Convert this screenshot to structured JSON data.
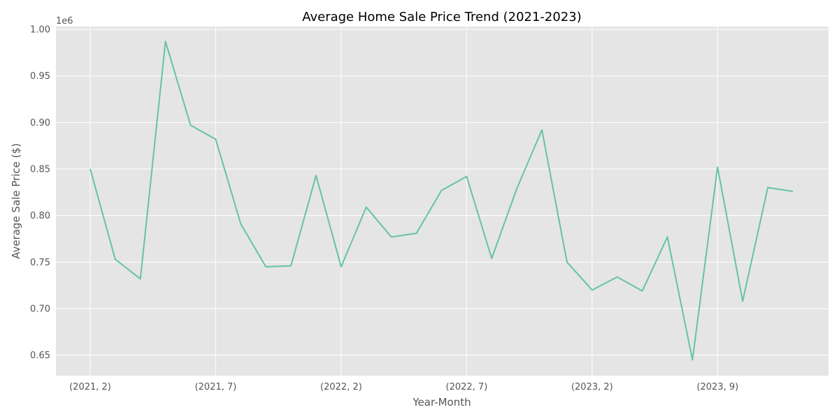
{
  "chart_data": {
    "type": "line",
    "title": "Average Home Sale Price Trend (2021-2023)",
    "xlabel": "Year-Month",
    "ylabel": "Average Sale Price ($)",
    "y_offset_label": "1e6",
    "grid": true,
    "ylim": [
      0.628,
      1.003
    ],
    "y_ticks": [
      0.65,
      0.7,
      0.75,
      0.8,
      0.85,
      0.9,
      0.95,
      1.0
    ],
    "y_tick_labels": [
      "0.65",
      "0.70",
      "0.75",
      "0.80",
      "0.85",
      "0.90",
      "0.95",
      "1.00"
    ],
    "x_tick_indices": [
      0,
      5,
      10,
      15,
      20,
      25
    ],
    "x_tick_labels": [
      "(2021, 2)",
      "(2021, 7)",
      "(2022, 2)",
      "(2022, 7)",
      "(2023, 2)",
      "(2023, 9)"
    ],
    "series": [
      {
        "color": "#66c2a5",
        "values": [
          0.85,
          0.753,
          0.732,
          0.987,
          0.897,
          0.882,
          0.791,
          0.745,
          0.746,
          0.843,
          0.745,
          0.809,
          0.777,
          0.781,
          0.827,
          0.842,
          0.754,
          0.829,
          0.892,
          0.75,
          0.72,
          0.734,
          0.719,
          0.777,
          0.645,
          0.852,
          0.708,
          0.83,
          0.826
        ]
      }
    ]
  },
  "colors": {
    "plot_background": "#e5e5e5",
    "grid": "#ffffff",
    "line": "#66c2a5"
  }
}
